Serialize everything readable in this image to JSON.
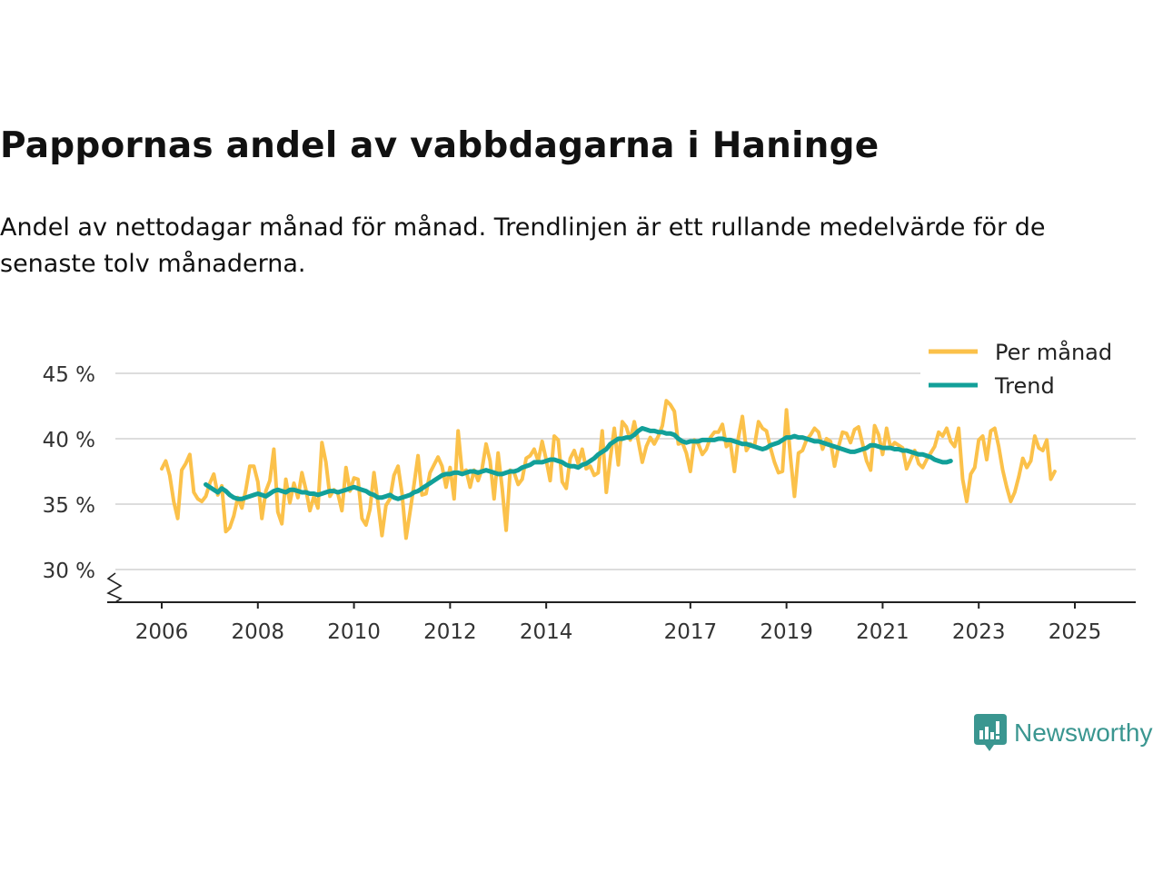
{
  "header": {
    "title": "Pappornas andel av vabbdagarna i Haninge",
    "subtitle": "Andel av nettodagar månad för månad. Trendlinjen är ett rullande medelvärde för de senaste tolv månaderna."
  },
  "brand": {
    "name": "Newsworthy",
    "icon": "newsworthy-logo-icon",
    "color": "#3a9690"
  },
  "colors": {
    "monthly": "#fbc14a",
    "trend": "#12a099",
    "grid": "#dddddd",
    "axis": "#222222",
    "text": "#333333"
  },
  "chart_data": {
    "type": "line",
    "title": "Pappornas andel av vabbdagarna i Haninge",
    "xlabel": "",
    "ylabel": "",
    "ylim": [
      28,
      46
    ],
    "y_axis_break": true,
    "yticks": [
      30,
      35,
      40,
      45
    ],
    "ytick_labels": [
      "30 %",
      "35 %",
      "40 %",
      "45 %"
    ],
    "x_range": [
      2005.5,
      2026.8
    ],
    "xticks": [
      2006,
      2008,
      2010,
      2012,
      2014,
      2017,
      2019,
      2021,
      2023,
      2025
    ],
    "xtick_labels": [
      "2006",
      "2008",
      "2010",
      "2012",
      "2014",
      "2017",
      "2019",
      "2021",
      "2023",
      "2025"
    ],
    "legend_position": "top-right",
    "series": [
      {
        "name": "Per månad",
        "color": "#fbc14a",
        "start": 2006.0,
        "step": 0.08333,
        "values": [
          37.7,
          38.3,
          37.2,
          35.2,
          33.9,
          37.6,
          38.1,
          38.8,
          35.9,
          35.4,
          35.2,
          35.6,
          36.6,
          37.3,
          35.7,
          36.4,
          32.9,
          33.2,
          34.1,
          35.5,
          34.7,
          36.1,
          37.9,
          37.9,
          36.7,
          33.9,
          36.0,
          36.8,
          39.2,
          34.4,
          33.5,
          36.9,
          35.1,
          36.6,
          35.5,
          37.4,
          36.1,
          34.5,
          35.6,
          34.7,
          39.7,
          38.2,
          35.6,
          36.1,
          35.8,
          34.5,
          37.8,
          36.0,
          37.0,
          36.9,
          33.9,
          33.4,
          34.6,
          37.4,
          35.1,
          32.6,
          34.9,
          35.4,
          37.2,
          37.9,
          35.8,
          32.4,
          34.4,
          36.5,
          38.7,
          35.7,
          35.8,
          37.4,
          38.0,
          38.6,
          37.9,
          36.3,
          37.8,
          35.4,
          40.6,
          37.4,
          37.6,
          36.3,
          37.6,
          36.8,
          37.7,
          39.6,
          38.3,
          35.4,
          38.9,
          36.2,
          33.0,
          37.6,
          37.4,
          36.5,
          36.9,
          38.5,
          38.7,
          39.2,
          38.3,
          39.8,
          38.4,
          36.8,
          40.2,
          39.9,
          36.7,
          36.2,
          38.5,
          39.1,
          38.1,
          39.2,
          37.7,
          37.9,
          37.2,
          37.4,
          40.6,
          35.9,
          38.5,
          40.8,
          38.0,
          41.3,
          40.9,
          39.9,
          41.3,
          39.8,
          38.2,
          39.4,
          40.1,
          39.6,
          40.2,
          41.0,
          42.9,
          42.6,
          42.1,
          39.6,
          39.7,
          38.9,
          37.5,
          39.9,
          39.6,
          38.8,
          39.2,
          40.1,
          40.5,
          40.5,
          41.1,
          39.4,
          39.7,
          37.5,
          40.1,
          41.7,
          39.1,
          39.6,
          39.4,
          41.3,
          40.8,
          40.6,
          39.3,
          38.2,
          37.4,
          37.5,
          42.2,
          38.6,
          35.6,
          38.9,
          39.1,
          39.9,
          40.3,
          40.8,
          40.5,
          39.2,
          40.0,
          39.8,
          37.9,
          39.4,
          40.5,
          40.4,
          39.7,
          40.7,
          40.9,
          39.6,
          38.3,
          37.6,
          41.0,
          40.3,
          38.8,
          40.8,
          39.3,
          39.7,
          39.5,
          39.3,
          37.7,
          38.4,
          39.1,
          38.1,
          37.8,
          38.4,
          38.9,
          39.4,
          40.5,
          40.2,
          40.8,
          39.8,
          39.4,
          40.8,
          36.9,
          35.2,
          37.3,
          37.8,
          39.9,
          40.2,
          38.4,
          40.6,
          40.8,
          39.4,
          37.6,
          36.3,
          35.2,
          35.9,
          37.1,
          38.5,
          37.8,
          38.3,
          40.2,
          39.3,
          39.1,
          39.9,
          36.9,
          37.5
        ]
      },
      {
        "name": "Trend",
        "color": "#12a099",
        "start": 2006.9167,
        "step": 0.08333,
        "values": [
          36.5,
          36.3,
          36.1,
          35.9,
          36.2,
          36.0,
          35.7,
          35.5,
          35.4,
          35.4,
          35.5,
          35.6,
          35.7,
          35.8,
          35.7,
          35.6,
          35.8,
          36.0,
          36.1,
          36.0,
          35.9,
          36.1,
          36.1,
          36.0,
          35.9,
          35.9,
          35.8,
          35.8,
          35.7,
          35.8,
          35.9,
          36.0,
          36.0,
          35.9,
          36.0,
          36.1,
          36.2,
          36.3,
          36.2,
          36.1,
          36.0,
          35.8,
          35.7,
          35.5,
          35.5,
          35.6,
          35.7,
          35.5,
          35.4,
          35.5,
          35.6,
          35.7,
          35.9,
          36.0,
          36.2,
          36.4,
          36.6,
          36.8,
          37.0,
          37.2,
          37.3,
          37.3,
          37.4,
          37.4,
          37.3,
          37.4,
          37.5,
          37.5,
          37.4,
          37.5,
          37.6,
          37.5,
          37.4,
          37.3,
          37.3,
          37.4,
          37.5,
          37.5,
          37.6,
          37.8,
          37.9,
          38.0,
          38.2,
          38.2,
          38.2,
          38.3,
          38.4,
          38.4,
          38.3,
          38.2,
          38.0,
          37.9,
          37.9,
          37.8,
          38.0,
          38.1,
          38.3,
          38.5,
          38.8,
          39.0,
          39.2,
          39.6,
          39.8,
          40.0,
          40.0,
          40.1,
          40.1,
          40.3,
          40.6,
          40.8,
          40.7,
          40.6,
          40.6,
          40.5,
          40.5,
          40.4,
          40.4,
          40.3,
          40.0,
          39.8,
          39.7,
          39.8,
          39.8,
          39.8,
          39.9,
          39.9,
          39.9,
          39.9,
          40.0,
          40.0,
          39.9,
          39.9,
          39.8,
          39.7,
          39.6,
          39.6,
          39.5,
          39.4,
          39.3,
          39.2,
          39.3,
          39.5,
          39.6,
          39.7,
          39.9,
          40.1,
          40.1,
          40.2,
          40.1,
          40.1,
          40.0,
          39.9,
          39.8,
          39.8,
          39.7,
          39.6,
          39.5,
          39.4,
          39.3,
          39.2,
          39.1,
          39.0,
          39.0,
          39.1,
          39.2,
          39.3,
          39.5,
          39.5,
          39.4,
          39.3,
          39.3,
          39.3,
          39.2,
          39.2,
          39.1,
          39.1,
          39.0,
          38.9,
          38.8,
          38.8,
          38.7,
          38.6,
          38.4,
          38.3,
          38.2,
          38.2,
          38.3
        ]
      }
    ]
  }
}
